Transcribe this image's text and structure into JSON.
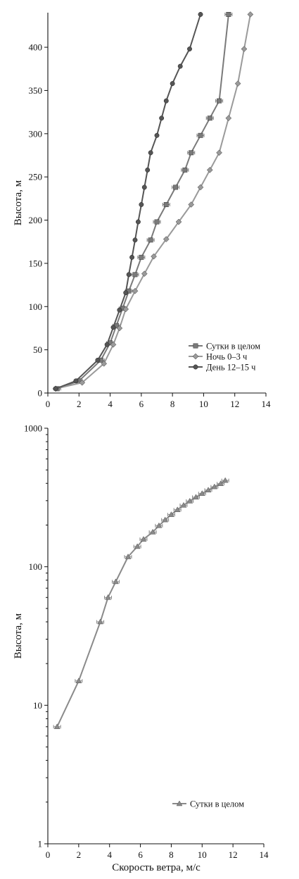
{
  "chart_data": [
    {
      "type": "line",
      "title": "",
      "xlabel": "",
      "ylabel": "Высота, м",
      "xlim": [
        0,
        14
      ],
      "ylim": [
        0,
        440
      ],
      "x_ticks": [
        "0",
        "2",
        "4",
        "6",
        "8",
        "10",
        "12",
        "14"
      ],
      "y_ticks": [
        "0",
        "50",
        "100",
        "150",
        "200",
        "250",
        "300",
        "350",
        "400"
      ],
      "legend_position": "bottom-right",
      "series": [
        {
          "name": "Сутки в целом",
          "color": "#7a7a7a",
          "marker": "square",
          "error_bars": true,
          "x": [
            0.6,
            2.0,
            3.4,
            4.0,
            4.4,
            4.8,
            5.2,
            5.6,
            6.0,
            6.6,
            7.0,
            7.6,
            8.2,
            8.8,
            9.2,
            9.8,
            10.4,
            11.0,
            11.6
          ],
          "y": [
            5,
            14,
            38,
            58,
            78,
            98,
            118,
            137,
            157,
            177,
            198,
            218,
            238,
            258,
            278,
            298,
            318,
            338,
            438
          ]
        },
        {
          "name": "Ночь 0–3 ч",
          "color": "#9a9a9a",
          "marker": "diamond",
          "error_bars": false,
          "x": [
            0.5,
            2.2,
            3.6,
            4.2,
            4.6,
            5.0,
            5.6,
            6.2,
            6.8,
            7.6,
            8.4,
            9.2,
            9.8,
            10.4,
            11.0,
            11.6,
            12.2,
            12.6,
            13.0
          ],
          "y": [
            5,
            12,
            34,
            56,
            75,
            97,
            118,
            138,
            158,
            178,
            198,
            218,
            238,
            258,
            278,
            318,
            358,
            398,
            438
          ]
        },
        {
          "name": "День 12–15 ч",
          "color": "#555555",
          "marker": "circle",
          "error_bars": false,
          "x": [
            0.5,
            1.8,
            3.2,
            3.8,
            4.2,
            4.6,
            5.0,
            5.2,
            5.4,
            5.6,
            5.8,
            6.0,
            6.2,
            6.4,
            6.6,
            7.0,
            7.3,
            7.6,
            8.0,
            8.5,
            9.1,
            9.8
          ],
          "y": [
            5,
            14,
            38,
            56,
            76,
            96,
            116,
            137,
            157,
            177,
            198,
            218,
            238,
            258,
            278,
            298,
            318,
            338,
            358,
            378,
            398,
            438
          ]
        }
      ]
    },
    {
      "type": "line",
      "title": "",
      "xlabel": "Скорость ветра, м/с",
      "ylabel": "Высота, м",
      "xlim": [
        0,
        14
      ],
      "ylim": [
        1,
        1000
      ],
      "y_scale": "log",
      "x_ticks": [
        "0",
        "2",
        "4",
        "6",
        "8",
        "10",
        "12",
        "14"
      ],
      "y_ticks": [
        "1",
        "10",
        "100",
        "1000"
      ],
      "legend_position": "bottom-right",
      "series": [
        {
          "name": "Сутки в целом",
          "color": "#8a8a8a",
          "marker": "triangle",
          "error_bars": true,
          "x": [
            0.6,
            2.0,
            3.4,
            3.9,
            4.4,
            5.2,
            5.8,
            6.2,
            6.8,
            7.2,
            7.6,
            8.0,
            8.4,
            8.8,
            9.2,
            9.6,
            10.0,
            10.4,
            10.8,
            11.2,
            11.5
          ],
          "y": [
            7,
            15,
            40,
            60,
            78,
            118,
            140,
            158,
            178,
            198,
            218,
            238,
            258,
            278,
            298,
            318,
            338,
            358,
            378,
            398,
            420
          ]
        }
      ]
    }
  ]
}
